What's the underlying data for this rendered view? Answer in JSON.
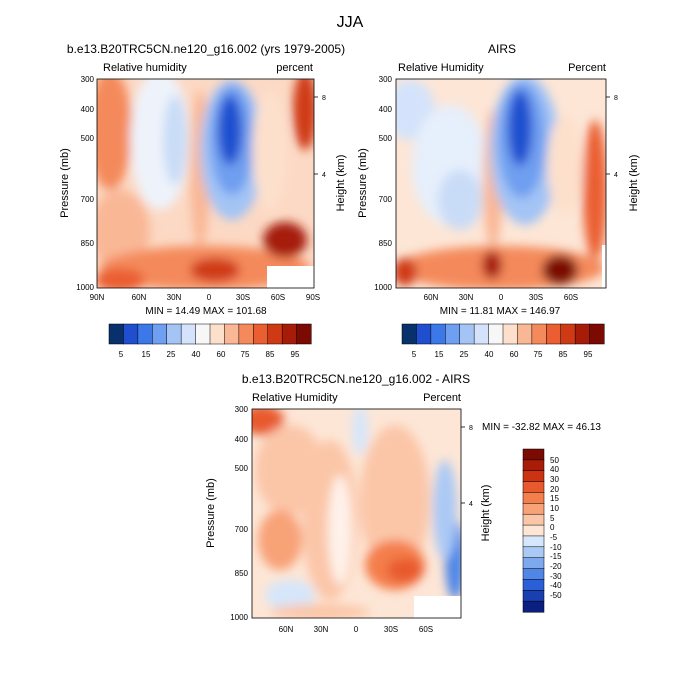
{
  "page_title": "JJA",
  "chart_data": [
    {
      "type": "heatmap",
      "title": "b.e13.B20TRC5CN.ne120_g16.002 (yrs 1979-2005)",
      "left_label": "Relative humidity",
      "right_label": "percent",
      "ylabel": "Pressure (mb)",
      "right_axis_label": "Height (km)",
      "x_ticks": [
        "90N",
        "60N",
        "30N",
        "0",
        "30S",
        "60S",
        "90S"
      ],
      "y_ticks": [
        "300",
        "400",
        "500",
        "700",
        "850",
        "1000"
      ],
      "right_ticks": [
        "8",
        "4"
      ],
      "stats": "MIN = 14.49 MAX = 101.68",
      "colorbar_labels": [
        "5",
        "15",
        "25",
        "40",
        "60",
        "75",
        "85",
        "95"
      ]
    },
    {
      "type": "heatmap",
      "title": "AIRS",
      "left_label": "Relative Humidity",
      "right_label": "Percent",
      "ylabel": "Pressure (mb)",
      "right_axis_label": "Height (km)",
      "x_ticks": [
        "60N",
        "30N",
        "0",
        "30S",
        "60S"
      ],
      "y_ticks": [
        "300",
        "400",
        "500",
        "700",
        "850",
        "1000"
      ],
      "right_ticks": [
        "8",
        "4"
      ],
      "stats": "MIN = 11.81 MAX = 146.97",
      "colorbar_labels": [
        "5",
        "15",
        "25",
        "40",
        "60",
        "75",
        "85",
        "95"
      ]
    },
    {
      "type": "heatmap",
      "title": "b.e13.B20TRC5CN.ne120_g16.002 - AIRS",
      "left_label": "Relative Humidity",
      "right_label": "Percent",
      "ylabel": "Pressure (mb)",
      "right_axis_label": "Height (km)",
      "x_ticks": [
        "60N",
        "30N",
        "0",
        "30S",
        "60S"
      ],
      "y_ticks": [
        "300",
        "400",
        "500",
        "700",
        "850",
        "1000"
      ],
      "right_ticks": [
        "8",
        "4"
      ],
      "stats": "MIN = -32.82 MAX = 46.13",
      "colorbar_labels": [
        "50",
        "40",
        "30",
        "20",
        "15",
        "10",
        "5",
        "0",
        "-5",
        "-10",
        "-15",
        "-20",
        "-30",
        "-40",
        "-50"
      ]
    }
  ],
  "colors": {
    "rh_scale": [
      "#08306b",
      "#1f4fcf",
      "#3d78e8",
      "#6f9ff0",
      "#a3c4f5",
      "#d4e3fb",
      "#f7f7f7",
      "#fde0cc",
      "#f9b796",
      "#f48a5c",
      "#ea5e32",
      "#cf3a14",
      "#a61c08",
      "#7a0a02"
    ],
    "diff_scale": [
      "#7a0a02",
      "#a81c08",
      "#cc3312",
      "#e85a2e",
      "#f47e4c",
      "#f8a278",
      "#fbc6a8",
      "#fde6d6",
      "#d6e6fb",
      "#abc9f5",
      "#7ea9ee",
      "#5086e6",
      "#2a5fd8",
      "#1a3fb0",
      "#0a1f80"
    ]
  }
}
